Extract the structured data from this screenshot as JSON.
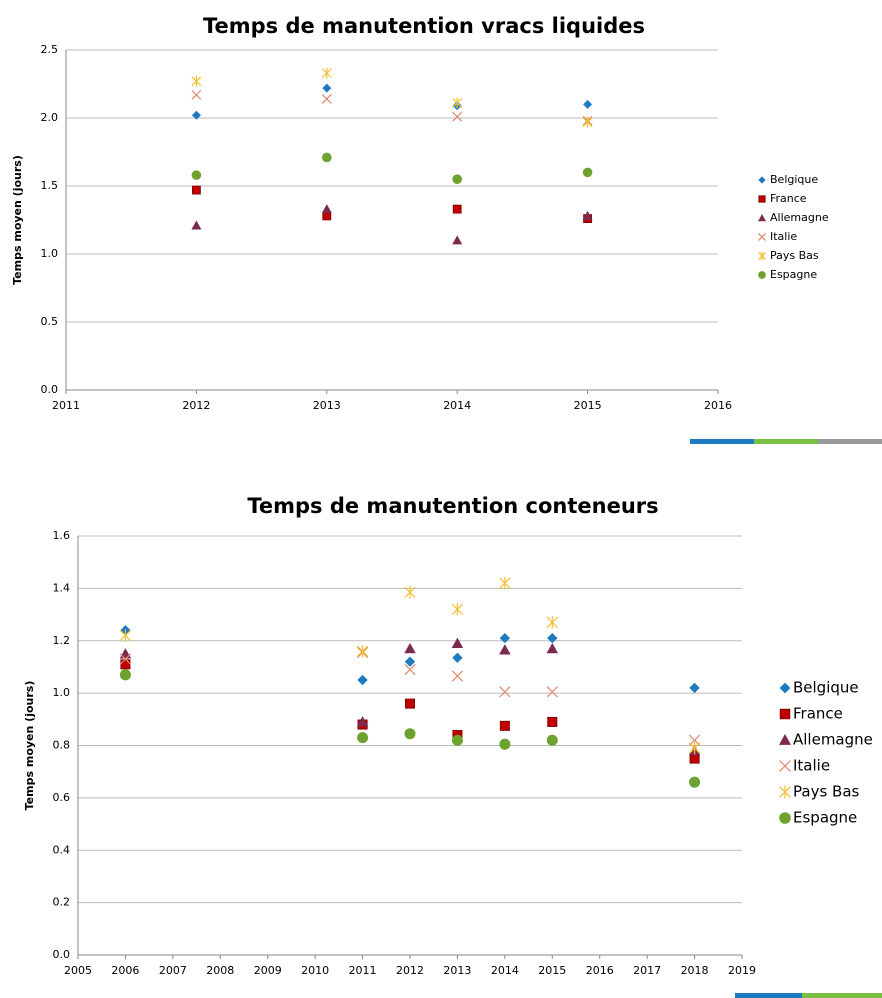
{
  "chart_data": [
    {
      "type": "scatter",
      "title": "Temps de manutention vracs liquides",
      "y_label": "Temps moyen (jours)",
      "x": [
        2012,
        2013,
        2014,
        2015
      ],
      "xlim": [
        2011,
        2016
      ],
      "xticks": [
        2011,
        2012,
        2013,
        2014,
        2015,
        2016
      ],
      "ylim": [
        0,
        2.5
      ],
      "yticks": [
        {
          "value": 0,
          "label": "0.0"
        },
        0.5,
        {
          "value": 1,
          "label": "1.0"
        },
        1.5,
        {
          "value": 2,
          "label": "2.0"
        },
        2.5
      ],
      "grid": true,
      "legend": "right",
      "series": [
        {
          "name": "Belgique",
          "color": "#1f7bc1",
          "marker": "diamond",
          "values": [
            2.02,
            2.22,
            2.09,
            2.1
          ]
        },
        {
          "name": "France",
          "color": "#c00000",
          "marker": "square",
          "values": [
            1.47,
            1.28,
            1.33,
            1.26
          ]
        },
        {
          "name": "Allemagne",
          "color": "#7b2c4e",
          "marker": "triangle",
          "values": [
            1.21,
            1.33,
            1.1,
            1.28
          ]
        },
        {
          "name": "Italie",
          "color": "#e0876a",
          "marker": "x",
          "values": [
            2.17,
            2.14,
            2.01,
            1.98
          ]
        },
        {
          "name": "Pays Bas",
          "color": "#f0c030",
          "marker": "star",
          "values": [
            2.27,
            2.33,
            2.11,
            1.97
          ]
        },
        {
          "name": "Espagne",
          "color": "#6ea22e",
          "marker": "circle",
          "values": [
            1.58,
            1.71,
            1.55,
            1.6
          ]
        }
      ]
    },
    {
      "type": "scatter",
      "title": "Temps de manutention conteneurs",
      "y_label": "Temps moyen (jours)",
      "x": [
        2006,
        2011,
        2012,
        2013,
        2014,
        2015,
        2018
      ],
      "xlim": [
        2005,
        2019
      ],
      "xticks": [
        2005,
        2006,
        2007,
        2008,
        2009,
        2010,
        2011,
        2012,
        2013,
        2014,
        2015,
        2016,
        2017,
        2018,
        2019
      ],
      "ylim": [
        0,
        1.6
      ],
      "yticks": [
        {
          "value": 0,
          "label": "0.0"
        },
        0.2,
        0.4,
        0.6,
        0.8,
        {
          "value": 1,
          "label": "1.0"
        },
        1.2,
        1.4,
        1.6
      ],
      "grid": true,
      "legend": "right",
      "series": [
        {
          "name": "Belgique",
          "color": "#1f7bc1",
          "marker": "diamond",
          "values": [
            1.24,
            1.05,
            1.12,
            1.135,
            1.21,
            1.21,
            1.02
          ]
        },
        {
          "name": "France",
          "color": "#c00000",
          "marker": "square",
          "values": [
            1.11,
            0.88,
            0.96,
            0.84,
            0.875,
            0.89,
            0.75
          ]
        },
        {
          "name": "Allemagne",
          "color": "#7b2c4e",
          "marker": "triangle",
          "values": [
            1.15,
            0.89,
            1.17,
            1.19,
            1.165,
            1.17,
            0.78
          ]
        },
        {
          "name": "Italie",
          "color": "#e0876a",
          "marker": "x",
          "values": [
            1.13,
            1.155,
            1.09,
            1.065,
            1.005,
            1.005,
            0.82
          ]
        },
        {
          "name": "Pays Bas",
          "color": "#f0c030",
          "marker": "star",
          "values": [
            1.22,
            1.16,
            1.385,
            1.32,
            1.42,
            1.27,
            0.79
          ]
        },
        {
          "name": "Espagne",
          "color": "#6ea22e",
          "marker": "circle",
          "values": [
            1.07,
            0.83,
            0.845,
            0.82,
            0.805,
            0.82,
            0.66
          ]
        }
      ]
    }
  ]
}
